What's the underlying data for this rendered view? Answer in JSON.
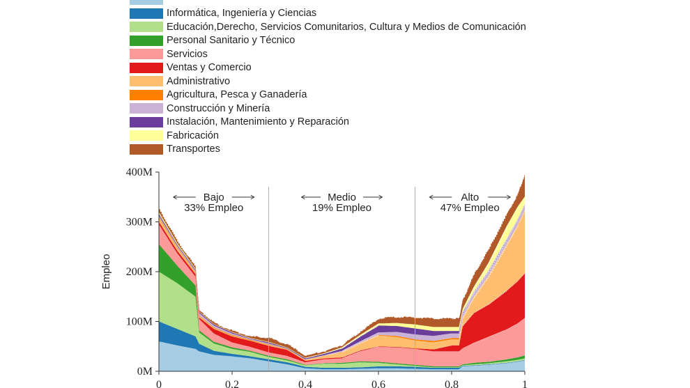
{
  "chart_data": {
    "type": "area",
    "stacked": true,
    "title": "",
    "xlabel": "",
    "ylabel": "Empleo",
    "xlim": [
      0,
      1
    ],
    "ylim": [
      0,
      400
    ],
    "y_unit": "M",
    "x_ticks": [
      "0",
      "0.2",
      "0.4",
      "0.6",
      "0.8",
      "1"
    ],
    "x_tick_values": [
      0,
      0.2,
      0.4,
      0.6,
      0.8,
      1
    ],
    "y_ticks": [
      "0M",
      "100M",
      "200M",
      "300M",
      "400M"
    ],
    "y_tick_values": [
      0,
      100,
      200,
      300,
      400
    ],
    "grid": false,
    "legend_position": "top",
    "regions": [
      {
        "name": "Bajo",
        "label": "Bajo",
        "share": "33% Empleo",
        "x_start": 0,
        "x_end": 0.3
      },
      {
        "name": "Medio",
        "label": "Medio",
        "share": "19% Empleo",
        "x_start": 0.3,
        "x_end": 0.7
      },
      {
        "name": "Alto",
        "label": "Alto",
        "share": "47% Empleo",
        "x_start": 0.7,
        "x_end": 1
      }
    ],
    "dividers": [
      0.3,
      0.7
    ],
    "x": [
      0,
      0.05,
      0.1,
      0.11,
      0.15,
      0.2,
      0.25,
      0.3,
      0.35,
      0.4,
      0.45,
      0.5,
      0.55,
      0.6,
      0.65,
      0.7,
      0.75,
      0.8,
      0.82,
      0.83,
      0.86,
      0.9,
      0.95,
      0.98,
      1.0
    ],
    "series": [
      {
        "name": "",
        "color": "#a6cde3",
        "values": [
          60,
          52,
          45,
          40,
          33,
          30,
          26,
          20,
          14,
          6,
          4,
          4,
          5,
          6,
          6,
          5,
          4,
          4,
          4,
          10,
          11,
          13,
          16,
          19,
          22
        ]
      },
      {
        "name": "Informática, Ingeniería y Ciencias",
        "color": "#1f77b4",
        "values": [
          40,
          33,
          25,
          15,
          8,
          5,
          4,
          4,
          4,
          3,
          3,
          3,
          3,
          4,
          4,
          4,
          3,
          3,
          3,
          1,
          1,
          1,
          1,
          1,
          1
        ]
      },
      {
        "name": "Educación,Derecho, Servicios Comunitarios, Cultura y Medios de Comunicación",
        "color": "#b2df8a",
        "values": [
          100,
          92,
          80,
          23,
          15,
          10,
          9,
          5,
          4,
          3,
          8,
          8,
          10,
          7,
          4,
          2,
          1,
          1,
          1,
          1,
          2,
          2,
          3,
          3,
          3
        ]
      },
      {
        "name": "Personal Sanitario y Técnico",
        "color": "#33a02c",
        "values": [
          55,
          35,
          22,
          4,
          3,
          3,
          2,
          2,
          2,
          1,
          1,
          2,
          2,
          2,
          2,
          2,
          2,
          2,
          2,
          2,
          3,
          3,
          4,
          5,
          6
        ]
      },
      {
        "name": "Servicios",
        "color": "#fb9a99",
        "values": [
          40,
          25,
          18,
          23,
          17,
          10,
          8,
          7,
          7,
          5,
          8,
          9,
          20,
          30,
          32,
          32,
          30,
          30,
          30,
          32,
          40,
          50,
          60,
          68,
          75
        ]
      },
      {
        "name": "Ventas y Comercio",
        "color": "#e31a1c",
        "values": [
          5,
          5,
          5,
          3,
          9,
          12,
          12,
          13,
          12,
          3,
          2,
          2,
          2,
          1,
          1,
          1,
          4,
          12,
          12,
          45,
          60,
          65,
          78,
          85,
          90
        ]
      },
      {
        "name": "Administrativo",
        "color": "#fdbf6f",
        "values": [
          8,
          6,
          3,
          3,
          2,
          2,
          1,
          2,
          2,
          2,
          5,
          10,
          14,
          22,
          20,
          16,
          14,
          12,
          12,
          15,
          30,
          55,
          90,
          110,
          125
        ]
      },
      {
        "name": "Agricultura, Pesca y Ganadería",
        "color": "#ff7f00",
        "values": [
          2,
          1,
          1,
          1,
          1,
          1,
          1,
          1,
          0,
          0,
          0,
          1,
          1,
          1,
          2,
          2,
          3,
          3,
          3,
          2,
          2,
          2,
          2,
          2,
          2
        ]
      },
      {
        "name": "Construcción y Minería",
        "color": "#cab2d6",
        "values": [
          3,
          3,
          3,
          5,
          4,
          3,
          2,
          2,
          1,
          1,
          1,
          2,
          3,
          5,
          8,
          10,
          10,
          9,
          9,
          8,
          8,
          9,
          10,
          10,
          10
        ]
      },
      {
        "name": "Instalación, Mantenimiento y Reparación",
        "color": "#6a3d9a",
        "values": [
          3,
          2,
          2,
          2,
          2,
          2,
          1,
          2,
          1,
          2,
          3,
          5,
          10,
          14,
          12,
          12,
          10,
          5,
          5,
          3,
          2,
          2,
          2,
          2,
          2
        ]
      },
      {
        "name": "Fabricación",
        "color": "#ffff99",
        "values": [
          4,
          3,
          2,
          1,
          1,
          1,
          1,
          1,
          1,
          1,
          1,
          2,
          3,
          4,
          6,
          8,
          8,
          8,
          8,
          6,
          10,
          15,
          25,
          25,
          15
        ]
      },
      {
        "name": "Transportes",
        "color": "#b15928",
        "values": [
          5,
          3,
          2,
          2,
          2,
          2,
          3,
          8,
          6,
          4,
          4,
          5,
          7,
          10,
          12,
          14,
          17,
          17,
          17,
          18,
          25,
          28,
          25,
          25,
          45
        ]
      }
    ]
  },
  "legend": {
    "items": [
      {
        "label": "",
        "color": "#a6cde3"
      },
      {
        "label": "Informática, Ingeniería y Ciencias",
        "color": "#1f77b4"
      },
      {
        "label": "Educación,Derecho, Servicios Comunitarios, Cultura y Medios de Comunicación",
        "color": "#b2df8a"
      },
      {
        "label": "Personal Sanitario y Técnico",
        "color": "#33a02c"
      },
      {
        "label": "Servicios",
        "color": "#fb9a99"
      },
      {
        "label": "Ventas y Comercio",
        "color": "#e31a1c"
      },
      {
        "label": "Administrativo",
        "color": "#fdbf6f"
      },
      {
        "label": "Agricultura, Pesca y Ganadería",
        "color": "#ff7f00"
      },
      {
        "label": "Construcción y Minería",
        "color": "#cab2d6"
      },
      {
        "label": "Instalación, Mantenimiento y Reparación",
        "color": "#6a3d9a"
      },
      {
        "label": "Fabricación",
        "color": "#ffff99"
      },
      {
        "label": "Transportes",
        "color": "#b15928"
      }
    ]
  }
}
